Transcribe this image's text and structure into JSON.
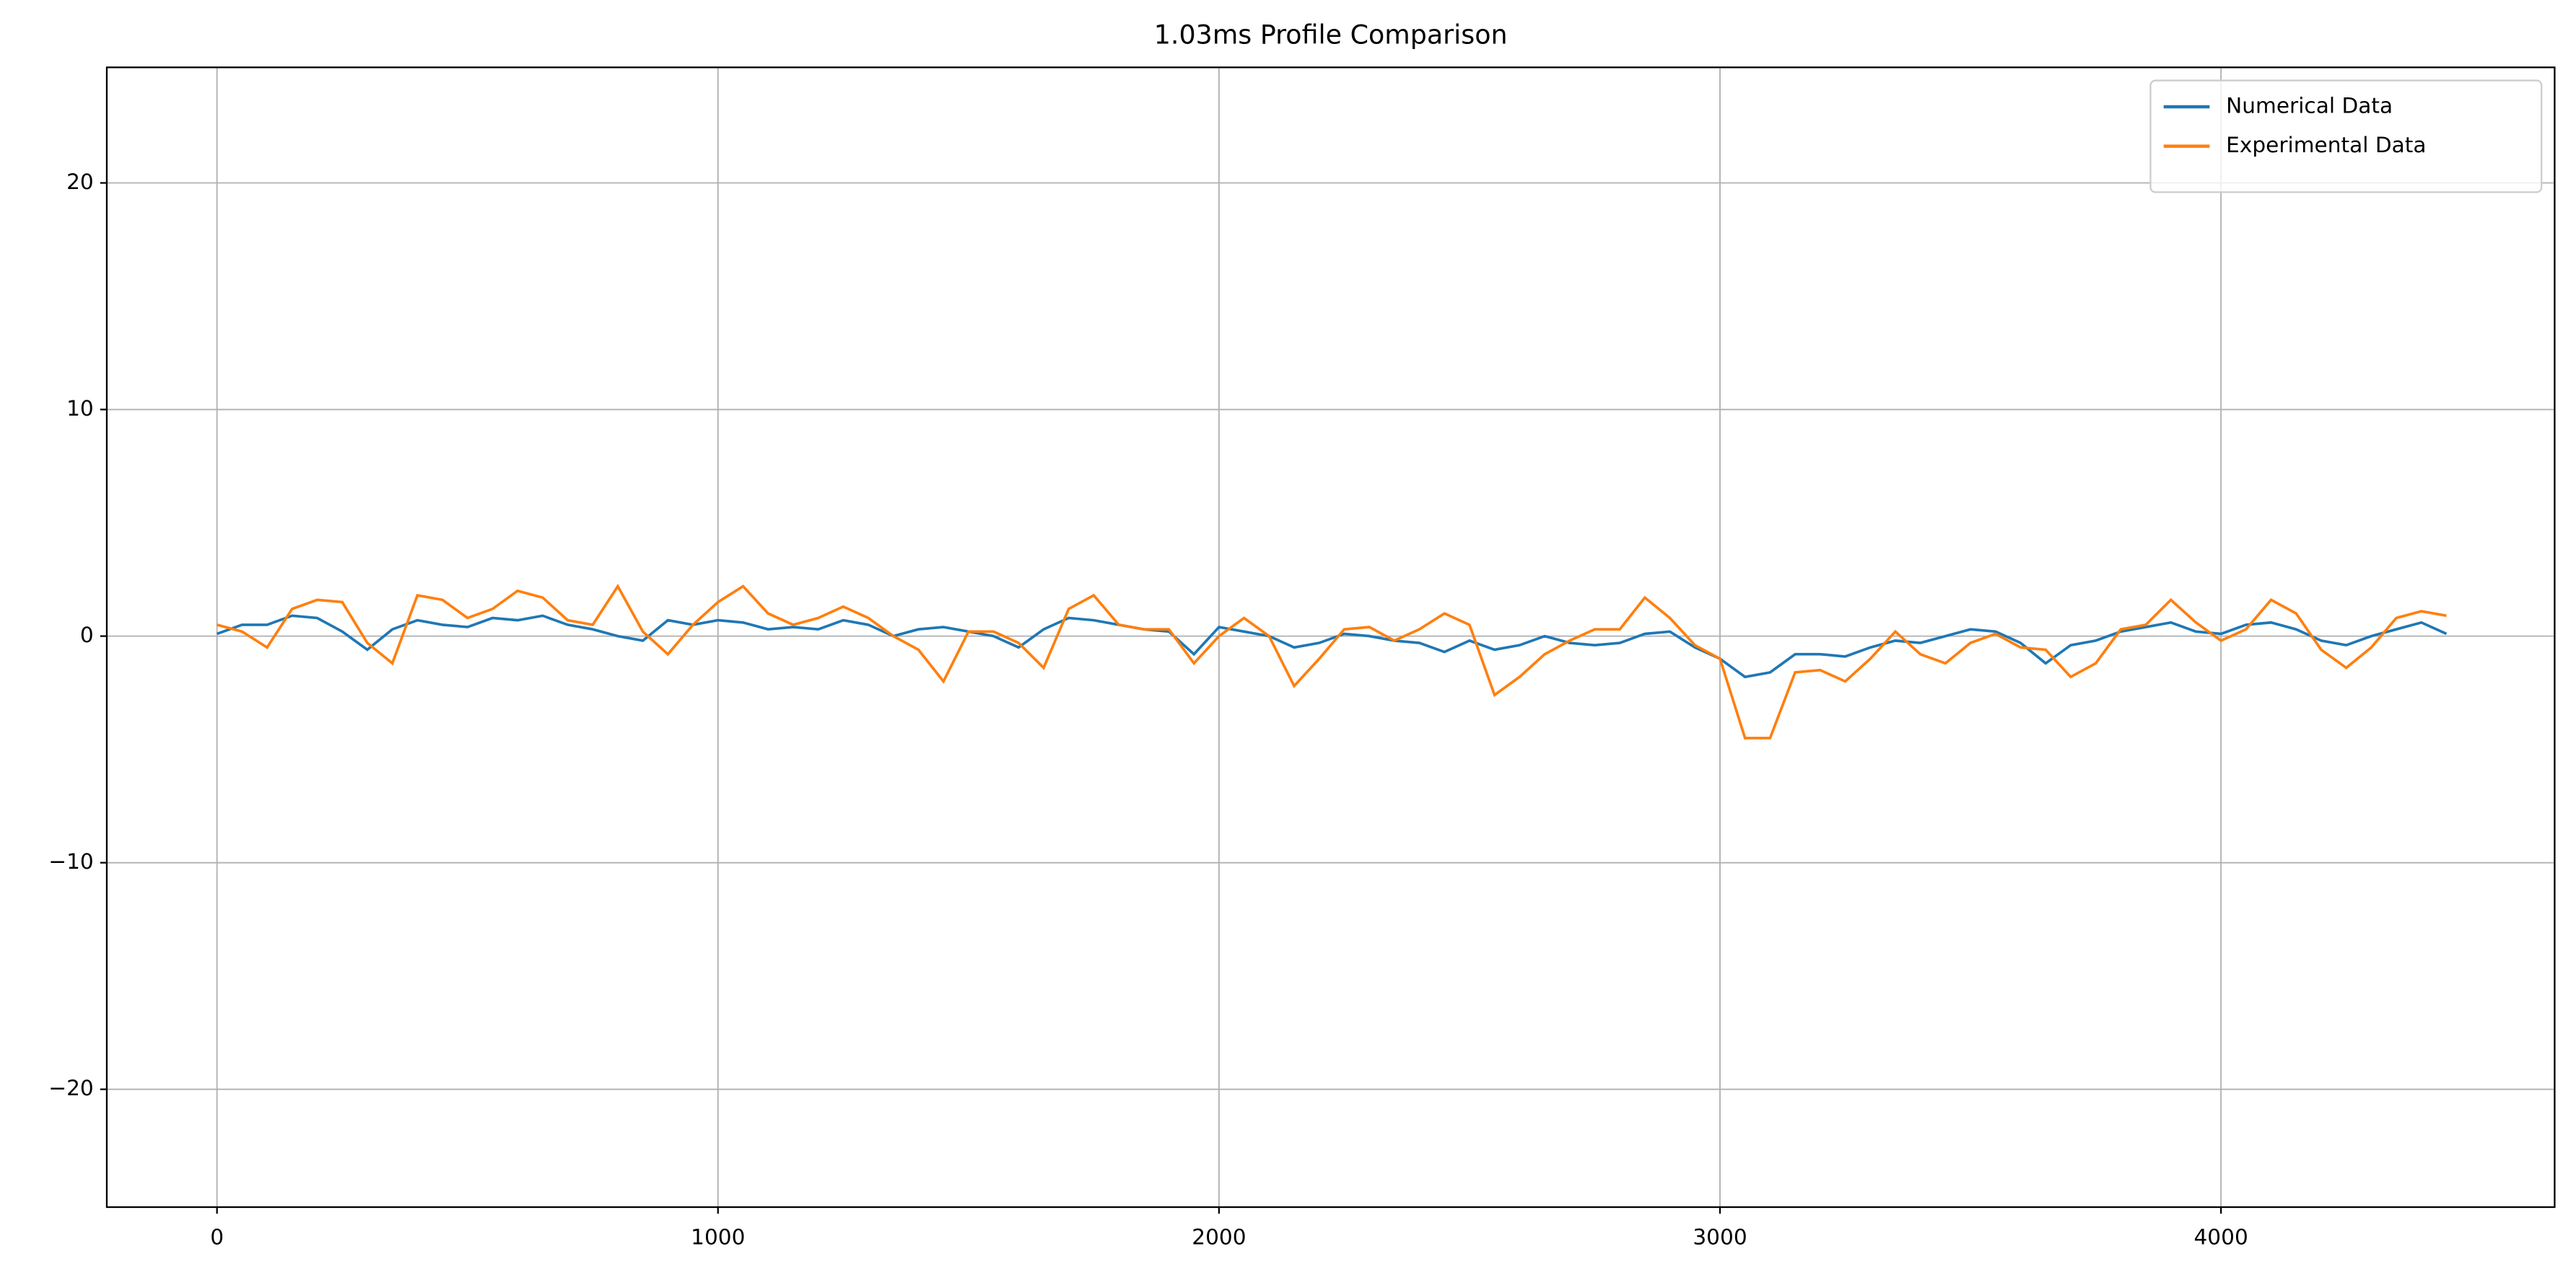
{
  "chart_data": {
    "type": "line",
    "title": "1.03ms Profile Comparison",
    "x": [
      0,
      50,
      100,
      150,
      200,
      250,
      300,
      350,
      400,
      450,
      500,
      550,
      600,
      650,
      700,
      750,
      800,
      850,
      900,
      950,
      1000,
      1050,
      1100,
      1150,
      1200,
      1250,
      1300,
      1350,
      1400,
      1450,
      1500,
      1550,
      1600,
      1650,
      1700,
      1750,
      1800,
      1850,
      1900,
      1950,
      2000,
      2050,
      2100,
      2150,
      2200,
      2250,
      2300,
      2350,
      2400,
      2450,
      2500,
      2550,
      2600,
      2650,
      2700,
      2750,
      2800,
      2850,
      2900,
      2950,
      3000,
      3050,
      3100,
      3150,
      3200,
      3250,
      3300,
      3350,
      3400,
      3450,
      3500,
      3550,
      3600,
      3650,
      3700,
      3750,
      3800,
      3850,
      3900,
      3950,
      4000,
      4050,
      4100,
      4150,
      4200,
      4250,
      4300,
      4350,
      4400,
      4450
    ],
    "series": [
      {
        "name": "Numerical Data",
        "color": "#1f77b4",
        "values": [
          0.1,
          0.5,
          0.5,
          0.9,
          0.8,
          0.2,
          -0.6,
          0.3,
          0.7,
          0.5,
          0.4,
          0.8,
          0.7,
          0.9,
          0.5,
          0.3,
          0.0,
          -0.2,
          0.7,
          0.5,
          0.7,
          0.6,
          0.3,
          0.4,
          0.3,
          0.7,
          0.5,
          0.0,
          0.3,
          0.4,
          0.2,
          0.0,
          -0.5,
          0.3,
          0.8,
          0.7,
          0.5,
          0.3,
          0.2,
          -0.8,
          0.4,
          0.2,
          0.0,
          -0.5,
          -0.3,
          0.1,
          0.0,
          -0.2,
          -0.3,
          -0.7,
          -0.2,
          -0.6,
          -0.4,
          0.0,
          -0.3,
          -0.4,
          -0.3,
          0.1,
          0.2,
          -0.5,
          -1.0,
          -1.8,
          -1.6,
          -0.8,
          -0.8,
          -0.9,
          -0.5,
          -0.2,
          -0.3,
          0.0,
          0.3,
          0.2,
          -0.3,
          -1.2,
          -0.4,
          -0.2,
          0.2,
          0.4,
          0.6,
          0.2,
          0.1,
          0.5,
          0.6,
          0.3,
          -0.2,
          -0.4,
          0.0,
          0.3,
          0.6,
          0.1
        ]
      },
      {
        "name": "Experimental Data",
        "color": "#ff7f0e",
        "values": [
          0.5,
          0.2,
          -0.5,
          1.2,
          1.6,
          1.5,
          -0.3,
          -1.2,
          1.8,
          1.6,
          0.8,
          1.2,
          2.0,
          1.7,
          0.7,
          0.5,
          2.2,
          0.2,
          -0.8,
          0.5,
          1.5,
          2.2,
          1.0,
          0.5,
          0.8,
          1.3,
          0.8,
          0.0,
          -0.6,
          -2.0,
          0.2,
          0.2,
          -0.3,
          -1.4,
          1.2,
          1.8,
          0.5,
          0.3,
          0.3,
          -1.2,
          0.0,
          0.8,
          0.0,
          -2.2,
          -1.0,
          0.3,
          0.4,
          -0.2,
          0.3,
          1.0,
          0.5,
          -2.6,
          -1.8,
          -0.8,
          -0.2,
          0.3,
          0.3,
          1.7,
          0.8,
          -0.4,
          -1.0,
          -4.5,
          -4.5,
          -1.6,
          -1.5,
          -2.0,
          -1.0,
          0.2,
          -0.8,
          -1.2,
          -0.3,
          0.1,
          -0.5,
          -0.6,
          -1.8,
          -1.2,
          0.3,
          0.5,
          1.6,
          0.6,
          -0.2,
          0.3,
          1.6,
          1.0,
          -0.6,
          -1.4,
          -0.5,
          0.8,
          1.1,
          0.9
        ]
      }
    ],
    "xlim": [
      -220,
      4666
    ],
    "ylim": [
      -25.2,
      25.1
    ],
    "xticks": [
      0,
      1000,
      2000,
      3000,
      4000
    ],
    "yticks": [
      {
        "value": -20,
        "label": "−20"
      },
      {
        "value": -10,
        "label": "−10"
      },
      0,
      10,
      20
    ],
    "grid": true,
    "legend": "upper right"
  }
}
